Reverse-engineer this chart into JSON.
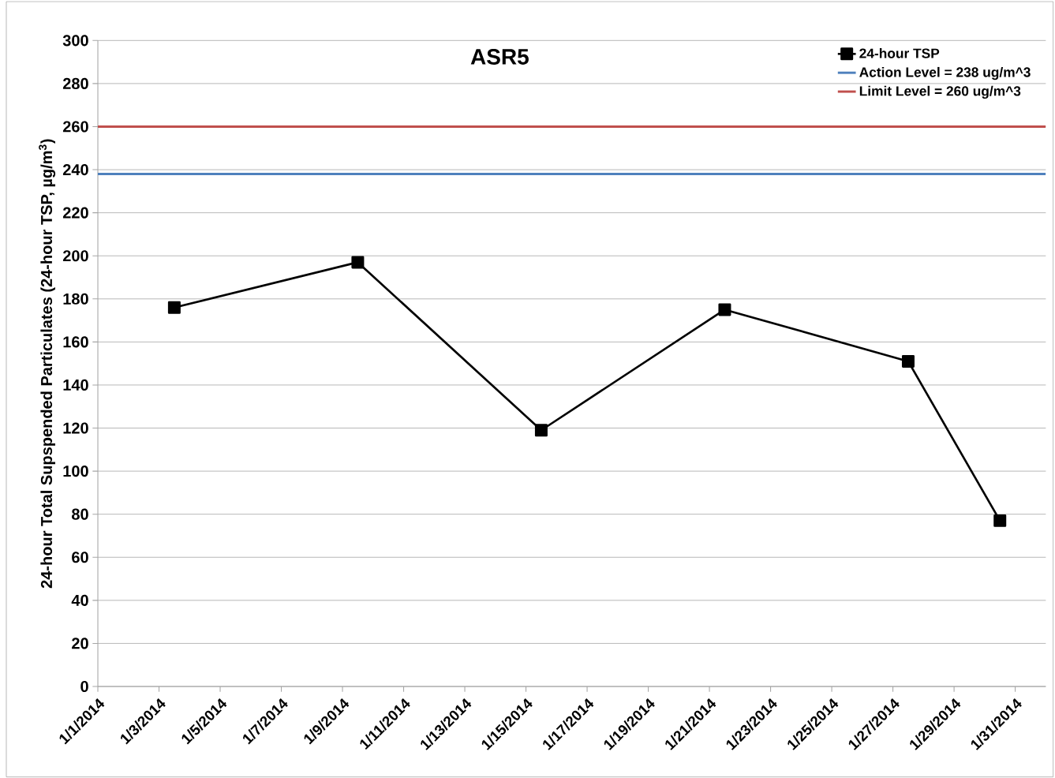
{
  "chart_data": {
    "type": "line",
    "title": "ASR5",
    "ylabel": "24-hour Total Supspended Particulates (24-hour TSP, µg/m$^{3}$)",
    "x": [
      "2014-01-03T12:00",
      "2014-01-09T12:00",
      "2014-01-15T12:00",
      "2014-01-21T12:00",
      "2014-01-27T12:00",
      "2014-01-30T12:00"
    ],
    "series": [
      {
        "name": "24-hour TSP",
        "color": "#000000",
        "values": [
          176,
          197,
          119,
          175,
          151,
          77
        ]
      }
    ],
    "ref_lines": [
      {
        "axis": "y",
        "value": 238,
        "label": "Action Level = 238 ug/m^3",
        "color": "#4f81bd"
      },
      {
        "axis": "y",
        "value": 260,
        "label": "Limit Level = 260 ug/m^3",
        "color": "#c0504d"
      }
    ],
    "xlim": [
      "2014-01-01",
      "2014-02-01"
    ],
    "xticks": [
      {
        "value": "2014-01-01",
        "label": "1/1/2014"
      },
      {
        "value": "2014-01-03",
        "label": "1/3/2014"
      },
      {
        "value": "2014-01-05",
        "label": "1/5/2014"
      },
      {
        "value": "2014-01-07",
        "label": "1/7/2014"
      },
      {
        "value": "2014-01-09",
        "label": "1/9/2014"
      },
      {
        "value": "2014-01-11",
        "label": "1/11/2014"
      },
      {
        "value": "2014-01-13",
        "label": "1/13/2014"
      },
      {
        "value": "2014-01-15",
        "label": "1/15/2014"
      },
      {
        "value": "2014-01-17",
        "label": "1/17/2014"
      },
      {
        "value": "2014-01-19",
        "label": "1/19/2014"
      },
      {
        "value": "2014-01-21",
        "label": "1/21/2014"
      },
      {
        "value": "2014-01-23",
        "label": "1/23/2014"
      },
      {
        "value": "2014-01-25",
        "label": "1/25/2014"
      },
      {
        "value": "2014-01-27",
        "label": "1/27/2014"
      },
      {
        "value": "2014-01-29",
        "label": "1/29/2014"
      },
      {
        "value": "2014-01-31",
        "label": "1/31/2014"
      }
    ],
    "ylim": [
      0,
      300
    ],
    "yticks": [
      0,
      20,
      40,
      60,
      80,
      100,
      120,
      140,
      160,
      180,
      200,
      220,
      240,
      260,
      280,
      300
    ],
    "grid": "y",
    "legend": "top right",
    "marker": "square",
    "line_style": "solid"
  }
}
